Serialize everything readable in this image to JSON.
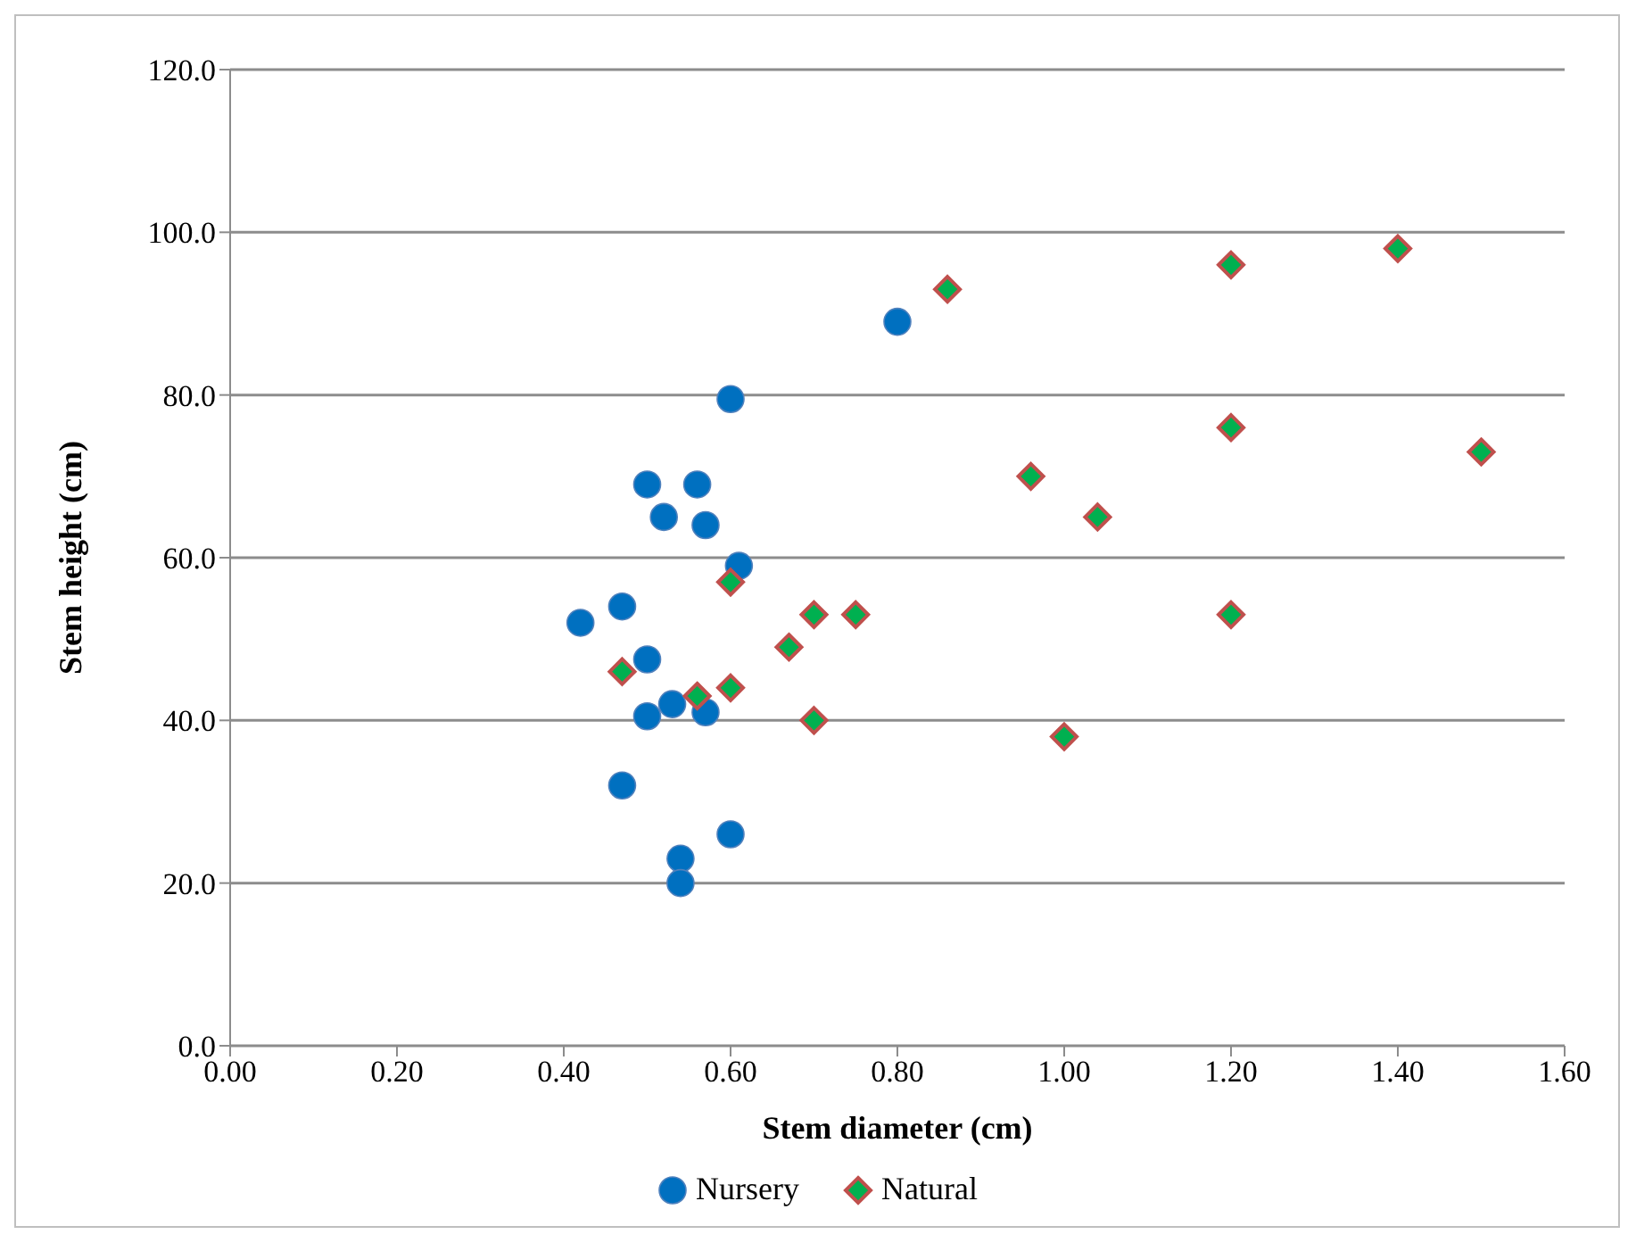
{
  "chart_data": {
    "type": "scatter",
    "xlabel": "Stem diameter (cm)",
    "ylabel": "Stem height (cm)",
    "xlim": [
      0,
      1.6
    ],
    "xticks": [
      {
        "value": 0,
        "label": "0.00"
      },
      {
        "value": 0.2,
        "label": "0.20"
      },
      {
        "value": 0.4,
        "label": "0.40"
      },
      {
        "value": 0.6,
        "label": "0.60"
      },
      {
        "value": 0.8,
        "label": "0.80"
      },
      {
        "value": 1,
        "label": "1.00"
      },
      {
        "value": 1.2,
        "label": "1.20"
      },
      {
        "value": 1.4,
        "label": "1.40"
      },
      {
        "value": 1.6,
        "label": "1.60"
      }
    ],
    "ylim": [
      0,
      120
    ],
    "yticks": [
      {
        "value": 0,
        "label": "0.0"
      },
      {
        "value": 20,
        "label": "20.0"
      },
      {
        "value": 40,
        "label": "40.0"
      },
      {
        "value": 60,
        "label": "60.0"
      },
      {
        "value": 80,
        "label": "80.0"
      },
      {
        "value": 100,
        "label": "100.0"
      },
      {
        "value": 120,
        "label": "120.0"
      }
    ],
    "grid": "y",
    "legend": "bottom",
    "series": [
      {
        "name": "Nursery",
        "color": "#0070c0",
        "marker": "circle",
        "x": [
          0.42,
          0.47,
          0.47,
          0.5,
          0.5,
          0.5,
          0.52,
          0.53,
          0.54,
          0.54,
          0.56,
          0.57,
          0.57,
          0.6,
          0.6,
          0.61,
          0.8
        ],
        "values": [
          52,
          54,
          32,
          69,
          47.5,
          40.5,
          65,
          42,
          23,
          20,
          69,
          64,
          41,
          79.5,
          26,
          59,
          89
        ]
      },
      {
        "name": "Natural",
        "color": "#00b050",
        "marker": "diamond",
        "x": [
          0.47,
          0.56,
          0.6,
          0.6,
          0.67,
          0.7,
          0.7,
          0.75,
          0.86,
          0.96,
          1,
          1.04,
          1.2,
          1.2,
          1.2,
          1.4,
          1.5
        ],
        "values": [
          46,
          43,
          57,
          44,
          49,
          53,
          40,
          53,
          93,
          70,
          38,
          65,
          96,
          76,
          53,
          98,
          73
        ]
      }
    ]
  }
}
